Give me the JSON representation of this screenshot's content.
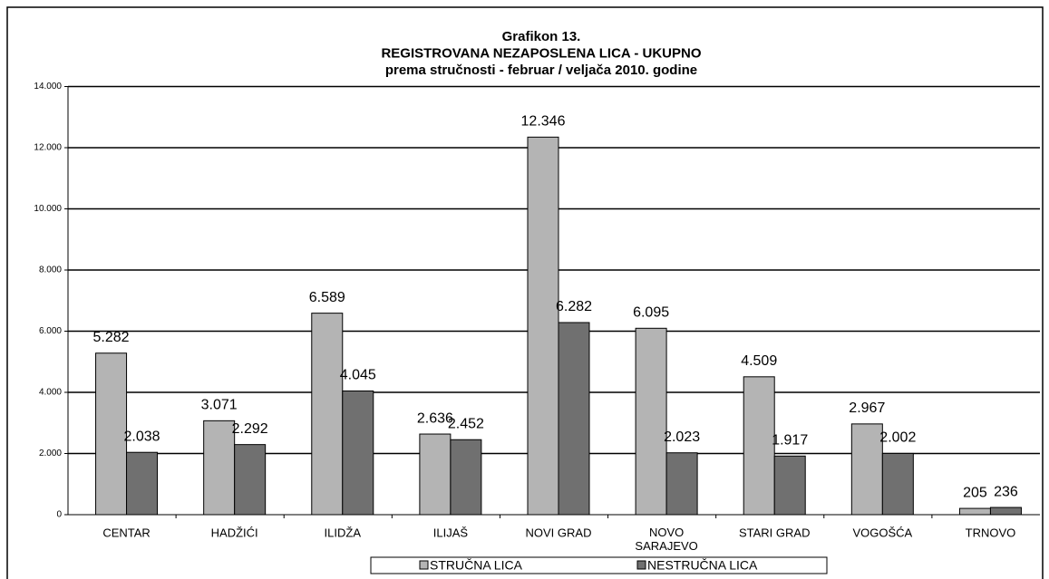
{
  "chart_data": {
    "type": "bar",
    "title": [
      "Grafikon 13.",
      "REGISTROVANA NEZAPOSLENA LICA - UKUPNO",
      "prema stručnosti -  februar / veljača 2010. godine"
    ],
    "categories": [
      "CENTAR",
      "HADŽIĆI",
      "ILIDŽA",
      "ILIJAŠ",
      "NOVI GRAD",
      "NOVO SARAJEVO",
      "STARI GRAD",
      "VOGOŠĆA",
      "TRNOVO"
    ],
    "series": [
      {
        "name": "STRUČNA LICA",
        "color": "#b4b4b4",
        "values": [
          5282,
          3071,
          6589,
          2636,
          12346,
          6095,
          4509,
          2967,
          205
        ],
        "value_labels": [
          "5.282",
          "3.071",
          "6.589",
          "2.636",
          "12.346",
          "6.095",
          "4.509",
          "2.967",
          "205"
        ]
      },
      {
        "name": "NESTRUČNA LICA",
        "color": "#707070",
        "values": [
          2038,
          2292,
          4045,
          2452,
          6282,
          2023,
          1917,
          2002,
          236
        ],
        "value_labels": [
          "2.038",
          "2.292",
          "4.045",
          "2.452",
          "6.282",
          "2.023",
          "1.917",
          "2.002",
          "236"
        ]
      }
    ],
    "ylim": [
      0,
      14000
    ],
    "yticks": [
      0,
      {
        "value": 2000,
        "label": "2.000"
      },
      {
        "value": 4000,
        "label": "4.000"
      },
      {
        "value": 6000,
        "label": "6.000"
      },
      {
        "value": 8000,
        "label": "8.000"
      },
      {
        "value": 10000,
        "label": "10.000"
      },
      {
        "value": 12000,
        "label": "12.000"
      },
      {
        "value": 14000,
        "label": "14.000"
      }
    ],
    "grid": true,
    "legend": "bottom"
  }
}
